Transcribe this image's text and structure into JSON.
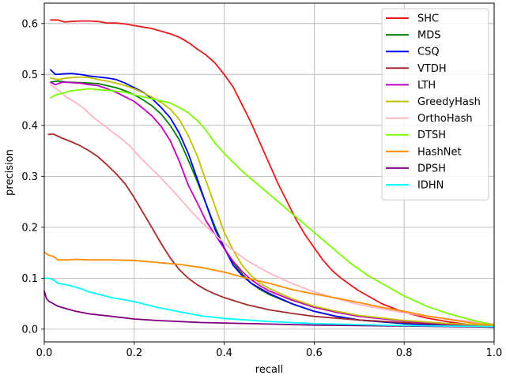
{
  "chart_data": {
    "type": "line",
    "xlabel": "recall",
    "ylabel": "precision",
    "xlim": [
      0.0,
      1.0
    ],
    "ylim": [
      -0.025,
      0.64
    ],
    "xticks": [
      "0.0",
      "0.2",
      "0.4",
      "0.6",
      "0.8",
      "1.0"
    ],
    "yticks": [
      "0.0",
      "0.1",
      "0.2",
      "0.3",
      "0.4",
      "0.5",
      "0.6"
    ],
    "grid": true,
    "legend_position": "top-right",
    "series": [
      {
        "name": "SHC",
        "color": "#e41a1c",
        "x": [
          0.013,
          0.03,
          0.045,
          0.06,
          0.08,
          0.1,
          0.12,
          0.14,
          0.16,
          0.18,
          0.2,
          0.22,
          0.24,
          0.26,
          0.28,
          0.3,
          0.32,
          0.34,
          0.36,
          0.38,
          0.4,
          0.42,
          0.44,
          0.46,
          0.48,
          0.5,
          0.52,
          0.54,
          0.56,
          0.58,
          0.6,
          0.62,
          0.64,
          0.66,
          0.68,
          0.7,
          0.72,
          0.75,
          0.8,
          0.85,
          0.9,
          0.95,
          1.0
        ],
        "y": [
          0.607,
          0.607,
          0.603,
          0.604,
          0.605,
          0.605,
          0.604,
          0.601,
          0.601,
          0.599,
          0.596,
          0.593,
          0.59,
          0.585,
          0.58,
          0.573,
          0.563,
          0.55,
          0.538,
          0.522,
          0.5,
          0.475,
          0.44,
          0.405,
          0.365,
          0.325,
          0.285,
          0.25,
          0.215,
          0.185,
          0.16,
          0.135,
          0.115,
          0.1,
          0.087,
          0.075,
          0.065,
          0.05,
          0.033,
          0.022,
          0.014,
          0.008,
          0.005
        ]
      },
      {
        "name": "MDS",
        "color": "#008000",
        "x": [
          0.013,
          0.03,
          0.05,
          0.08,
          0.1,
          0.12,
          0.14,
          0.16,
          0.18,
          0.2,
          0.22,
          0.24,
          0.26,
          0.28,
          0.3,
          0.32,
          0.34,
          0.36,
          0.38,
          0.4,
          0.42,
          0.44,
          0.46,
          0.48,
          0.5,
          0.55,
          0.6,
          0.65,
          0.7,
          0.8,
          0.9,
          1.0
        ],
        "y": [
          0.485,
          0.487,
          0.485,
          0.484,
          0.483,
          0.482,
          0.478,
          0.474,
          0.468,
          0.46,
          0.45,
          0.438,
          0.422,
          0.4,
          0.372,
          0.332,
          0.29,
          0.245,
          0.2,
          0.16,
          0.13,
          0.108,
          0.09,
          0.078,
          0.068,
          0.05,
          0.035,
          0.025,
          0.018,
          0.011,
          0.007,
          0.004
        ]
      },
      {
        "name": "CSQ",
        "color": "#0000ee",
        "x": [
          0.013,
          0.025,
          0.04,
          0.06,
          0.08,
          0.1,
          0.12,
          0.14,
          0.16,
          0.18,
          0.2,
          0.22,
          0.24,
          0.26,
          0.28,
          0.3,
          0.32,
          0.34,
          0.36,
          0.38,
          0.4,
          0.42,
          0.44,
          0.46,
          0.48,
          0.5,
          0.55,
          0.6,
          0.65,
          0.7,
          0.8,
          0.9,
          1.0
        ],
        "y": [
          0.51,
          0.5,
          0.501,
          0.502,
          0.5,
          0.497,
          0.495,
          0.493,
          0.49,
          0.483,
          0.474,
          0.465,
          0.452,
          0.435,
          0.415,
          0.385,
          0.345,
          0.295,
          0.245,
          0.195,
          0.16,
          0.125,
          0.105,
          0.09,
          0.08,
          0.07,
          0.05,
          0.035,
          0.025,
          0.018,
          0.011,
          0.007,
          0.004
        ]
      },
      {
        "name": "VTDH",
        "color": "#a52a2a",
        "x": [
          0.008,
          0.02,
          0.04,
          0.06,
          0.08,
          0.1,
          0.12,
          0.14,
          0.16,
          0.18,
          0.2,
          0.22,
          0.24,
          0.26,
          0.28,
          0.3,
          0.32,
          0.34,
          0.36,
          0.38,
          0.4,
          0.45,
          0.5,
          0.55,
          0.6,
          0.7,
          0.8,
          0.9,
          1.0
        ],
        "y": [
          0.382,
          0.383,
          0.375,
          0.368,
          0.36,
          0.35,
          0.338,
          0.322,
          0.305,
          0.285,
          0.258,
          0.228,
          0.198,
          0.168,
          0.14,
          0.117,
          0.1,
          0.087,
          0.077,
          0.069,
          0.062,
          0.048,
          0.038,
          0.031,
          0.025,
          0.018,
          0.013,
          0.009,
          0.006
        ]
      },
      {
        "name": "LTH",
        "color": "#c000c0",
        "x": [
          0.013,
          0.025,
          0.04,
          0.06,
          0.08,
          0.1,
          0.12,
          0.14,
          0.16,
          0.18,
          0.2,
          0.22,
          0.24,
          0.26,
          0.28,
          0.3,
          0.32,
          0.34,
          0.36,
          0.38,
          0.4,
          0.42,
          0.44,
          0.46,
          0.48,
          0.5,
          0.55,
          0.6,
          0.65,
          0.7,
          0.8,
          0.9,
          1.0
        ],
        "y": [
          0.485,
          0.48,
          0.485,
          0.484,
          0.483,
          0.48,
          0.478,
          0.472,
          0.465,
          0.456,
          0.447,
          0.433,
          0.418,
          0.398,
          0.37,
          0.33,
          0.283,
          0.248,
          0.212,
          0.185,
          0.158,
          0.133,
          0.113,
          0.097,
          0.085,
          0.075,
          0.057,
          0.043,
          0.033,
          0.025,
          0.016,
          0.01,
          0.006
        ]
      },
      {
        "name": "GreedyHash",
        "color": "#c0c000",
        "x": [
          0.013,
          0.03,
          0.05,
          0.08,
          0.1,
          0.12,
          0.14,
          0.16,
          0.18,
          0.2,
          0.22,
          0.24,
          0.26,
          0.28,
          0.3,
          0.32,
          0.34,
          0.36,
          0.38,
          0.4,
          0.42,
          0.44,
          0.46,
          0.48,
          0.5,
          0.55,
          0.6,
          0.65,
          0.7,
          0.8,
          0.9,
          1.0
        ],
        "y": [
          0.493,
          0.49,
          0.493,
          0.495,
          0.494,
          0.49,
          0.487,
          0.483,
          0.478,
          0.472,
          0.464,
          0.455,
          0.445,
          0.432,
          0.412,
          0.38,
          0.34,
          0.29,
          0.24,
          0.19,
          0.155,
          0.125,
          0.105,
          0.09,
          0.08,
          0.06,
          0.045,
          0.035,
          0.027,
          0.017,
          0.011,
          0.007
        ]
      },
      {
        "name": "OrthoHash",
        "color": "#ffb6c1",
        "x": [
          0.013,
          0.03,
          0.05,
          0.07,
          0.09,
          0.11,
          0.13,
          0.15,
          0.17,
          0.19,
          0.21,
          0.23,
          0.25,
          0.27,
          0.29,
          0.31,
          0.33,
          0.35,
          0.37,
          0.39,
          0.41,
          0.43,
          0.45,
          0.5,
          0.55,
          0.6,
          0.65,
          0.7,
          0.8,
          0.9,
          1.0
        ],
        "y": [
          0.48,
          0.47,
          0.455,
          0.445,
          0.432,
          0.415,
          0.402,
          0.388,
          0.375,
          0.36,
          0.34,
          0.322,
          0.305,
          0.287,
          0.268,
          0.248,
          0.228,
          0.21,
          0.193,
          0.177,
          0.162,
          0.148,
          0.135,
          0.11,
          0.09,
          0.073,
          0.06,
          0.048,
          0.032,
          0.02,
          0.01
        ]
      },
      {
        "name": "DTSH",
        "color": "#7cfc00",
        "x": [
          0.013,
          0.025,
          0.04,
          0.06,
          0.08,
          0.1,
          0.12,
          0.14,
          0.16,
          0.18,
          0.2,
          0.22,
          0.24,
          0.26,
          0.28,
          0.3,
          0.32,
          0.34,
          0.36,
          0.38,
          0.4,
          0.44,
          0.48,
          0.52,
          0.56,
          0.6,
          0.64,
          0.68,
          0.72,
          0.76,
          0.8,
          0.85,
          0.9,
          0.95,
          1.0
        ],
        "y": [
          0.453,
          0.46,
          0.463,
          0.468,
          0.47,
          0.472,
          0.47,
          0.469,
          0.467,
          0.465,
          0.46,
          0.456,
          0.452,
          0.448,
          0.444,
          0.435,
          0.425,
          0.41,
          0.39,
          0.365,
          0.345,
          0.31,
          0.28,
          0.25,
          0.22,
          0.19,
          0.16,
          0.13,
          0.105,
          0.085,
          0.065,
          0.045,
          0.03,
          0.018,
          0.008
        ]
      },
      {
        "name": "HashNet",
        "color": "#ff8c00",
        "x": [
          0.0,
          0.01,
          0.02,
          0.03,
          0.05,
          0.07,
          0.1,
          0.15,
          0.2,
          0.25,
          0.3,
          0.35,
          0.4,
          0.45,
          0.5,
          0.55,
          0.6,
          0.65,
          0.7,
          0.75,
          0.8,
          0.85,
          0.9,
          0.95,
          1.0
        ],
        "y": [
          0.151,
          0.145,
          0.143,
          0.136,
          0.136,
          0.137,
          0.136,
          0.136,
          0.135,
          0.131,
          0.127,
          0.121,
          0.112,
          0.1,
          0.09,
          0.078,
          0.069,
          0.061,
          0.052,
          0.043,
          0.035,
          0.026,
          0.019,
          0.012,
          0.007
        ]
      },
      {
        "name": "DPSH",
        "color": "#800080",
        "x": [
          0.0,
          0.005,
          0.01,
          0.02,
          0.03,
          0.05,
          0.07,
          0.1,
          0.15,
          0.2,
          0.25,
          0.3,
          0.35,
          0.4,
          0.5,
          0.6,
          0.7,
          0.8,
          0.9,
          1.0
        ],
        "y": [
          0.075,
          0.06,
          0.055,
          0.05,
          0.045,
          0.04,
          0.035,
          0.03,
          0.025,
          0.02,
          0.017,
          0.015,
          0.013,
          0.012,
          0.01,
          0.008,
          0.007,
          0.006,
          0.005,
          0.004
        ]
      },
      {
        "name": "IDHN",
        "color": "#00ffff",
        "x": [
          0.0,
          0.01,
          0.02,
          0.03,
          0.05,
          0.08,
          0.1,
          0.15,
          0.2,
          0.25,
          0.3,
          0.35,
          0.4,
          0.5,
          0.6,
          0.7,
          0.8,
          0.9,
          1.0
        ],
        "y": [
          0.1,
          0.1,
          0.097,
          0.09,
          0.087,
          0.08,
          0.073,
          0.062,
          0.054,
          0.043,
          0.034,
          0.026,
          0.021,
          0.015,
          0.011,
          0.009,
          0.007,
          0.006,
          0.005
        ]
      }
    ]
  }
}
